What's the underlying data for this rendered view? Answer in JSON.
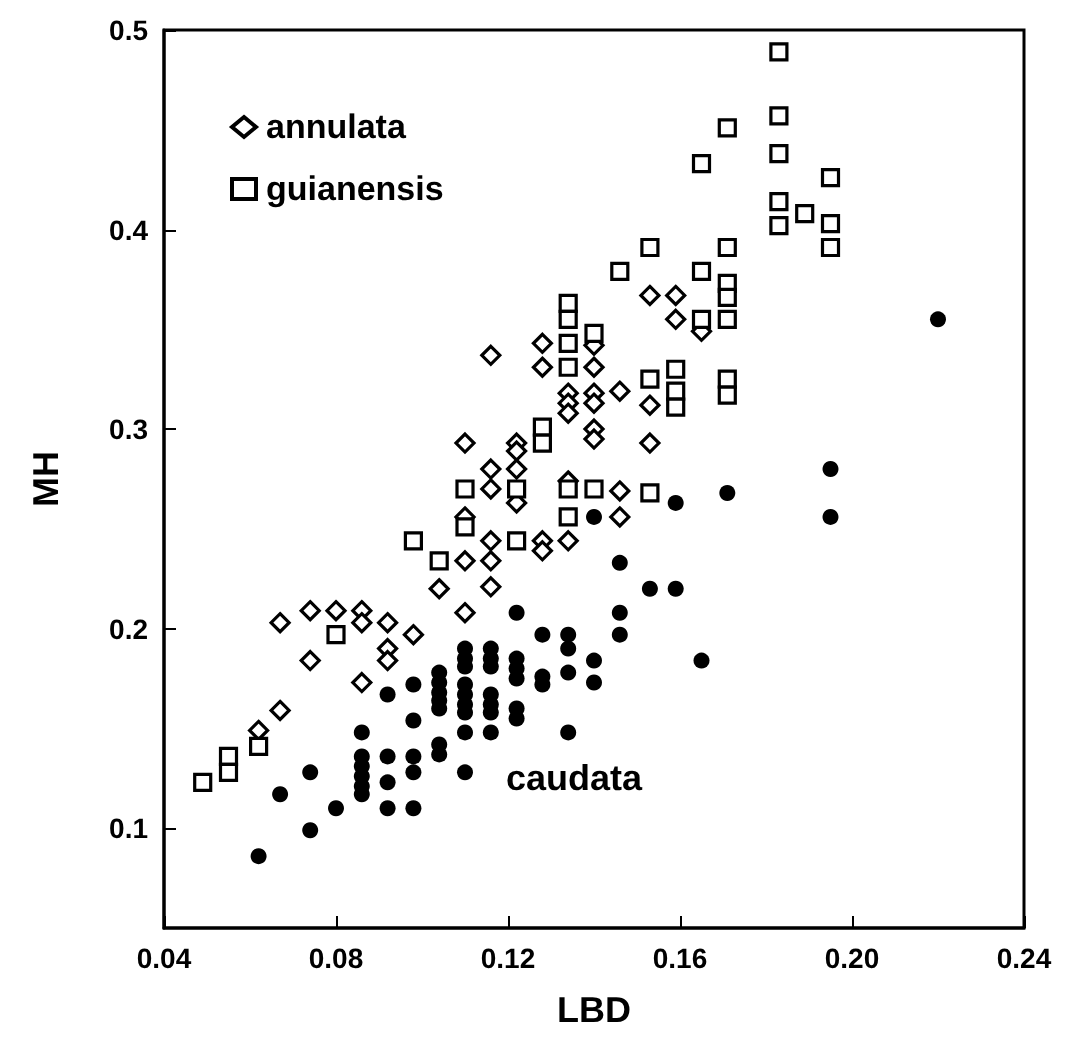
{
  "chart_data": {
    "type": "scatter",
    "xlabel": "LBD",
    "ylabel": "MH",
    "xlim": [
      0.04,
      0.24
    ],
    "xticks": [
      0.04,
      0.08,
      0.12,
      0.16,
      {
        "value": 0.2,
        "label": "0.20"
      },
      0.24
    ],
    "ylim": [
      0.05,
      0.5
    ],
    "yticks": [
      0.1,
      0.2,
      0.3,
      0.4,
      0.5
    ],
    "grid": false,
    "legend": "top left",
    "annotations": [
      "caudata"
    ],
    "series": [
      {
        "name": "annulata",
        "marker": "diamond",
        "color": "#000000",
        "x": [
          0.062,
          0.067,
          0.067,
          0.074,
          0.074,
          0.08,
          0.086,
          0.086,
          0.086,
          0.092,
          0.092,
          0.092,
          0.098,
          0.104,
          0.11,
          0.11,
          0.11,
          0.11,
          0.116,
          0.116,
          0.116,
          0.116,
          0.116,
          0.116,
          0.122,
          0.122,
          0.122,
          0.122,
          0.128,
          0.128,
          0.128,
          0.128,
          0.134,
          0.134,
          0.134,
          0.134,
          0.134,
          0.14,
          0.14,
          0.14,
          0.14,
          0.14,
          0.14,
          0.146,
          0.146,
          0.146,
          0.153,
          0.153,
          0.153,
          0.159,
          0.159,
          0.165
        ],
        "values": [
          0.149,
          0.159,
          0.203,
          0.184,
          0.209,
          0.209,
          0.209,
          0.203,
          0.173,
          0.203,
          0.19,
          0.184,
          0.197,
          0.22,
          0.293,
          0.256,
          0.234,
          0.208,
          0.337,
          0.28,
          0.27,
          0.244,
          0.234,
          0.221,
          0.293,
          0.289,
          0.28,
          0.263,
          0.343,
          0.331,
          0.244,
          0.239,
          0.318,
          0.313,
          0.308,
          0.274,
          0.244,
          0.342,
          0.331,
          0.318,
          0.313,
          0.3,
          0.295,
          0.319,
          0.269,
          0.256,
          0.367,
          0.312,
          0.293,
          0.367,
          0.355,
          0.349
        ]
      },
      {
        "name": "guianensis",
        "marker": "square",
        "color": "#000000",
        "x": [
          0.049,
          0.055,
          0.055,
          0.062,
          0.08,
          0.098,
          0.104,
          0.11,
          0.11,
          0.122,
          0.122,
          0.128,
          0.128,
          0.134,
          0.134,
          0.134,
          0.134,
          0.134,
          0.134,
          0.14,
          0.14,
          0.146,
          0.153,
          0.153,
          0.153,
          0.159,
          0.159,
          0.159,
          0.165,
          0.165,
          0.165,
          0.171,
          0.171,
          0.171,
          0.171,
          0.171,
          0.171,
          0.171,
          0.183,
          0.183,
          0.183,
          0.183,
          0.183,
          0.189,
          0.195,
          0.195,
          0.195
        ],
        "values": [
          0.123,
          0.136,
          0.128,
          0.141,
          0.197,
          0.244,
          0.234,
          0.27,
          0.251,
          0.27,
          0.244,
          0.301,
          0.293,
          0.363,
          0.355,
          0.343,
          0.331,
          0.27,
          0.256,
          0.348,
          0.27,
          0.379,
          0.391,
          0.325,
          0.268,
          0.33,
          0.319,
          0.311,
          0.433,
          0.379,
          0.355,
          0.451,
          0.391,
          0.373,
          0.366,
          0.355,
          0.325,
          0.317,
          0.489,
          0.457,
          0.438,
          0.414,
          0.402,
          0.408,
          0.426,
          0.403,
          0.391
        ]
      },
      {
        "marker": "circle",
        "color": "#000000",
        "x": [
          0.062,
          0.067,
          0.074,
          0.074,
          0.08,
          0.086,
          0.086,
          0.086,
          0.086,
          0.086,
          0.086,
          0.092,
          0.092,
          0.092,
          0.092,
          0.098,
          0.098,
          0.098,
          0.098,
          0.098,
          0.104,
          0.104,
          0.104,
          0.104,
          0.104,
          0.104,
          0.104,
          0.11,
          0.11,
          0.11,
          0.11,
          0.11,
          0.11,
          0.11,
          0.11,
          0.11,
          0.116,
          0.116,
          0.116,
          0.116,
          0.116,
          0.116,
          0.116,
          0.122,
          0.122,
          0.122,
          0.122,
          0.122,
          0.122,
          0.128,
          0.128,
          0.128,
          0.134,
          0.134,
          0.134,
          0.134,
          0.14,
          0.14,
          0.14,
          0.146,
          0.146,
          0.146,
          0.153,
          0.159,
          0.159,
          0.165,
          0.171,
          0.195,
          0.195,
          0.22
        ],
        "values": [
          0.086,
          0.117,
          0.128,
          0.099,
          0.11,
          0.148,
          0.136,
          0.131,
          0.126,
          0.121,
          0.117,
          0.167,
          0.136,
          0.123,
          0.11,
          0.172,
          0.154,
          0.136,
          0.128,
          0.11,
          0.178,
          0.173,
          0.168,
          0.164,
          0.16,
          0.142,
          0.137,
          0.19,
          0.185,
          0.181,
          0.172,
          0.167,
          0.162,
          0.158,
          0.148,
          0.128,
          0.19,
          0.185,
          0.181,
          0.167,
          0.162,
          0.158,
          0.148,
          0.208,
          0.185,
          0.18,
          0.175,
          0.16,
          0.155,
          0.197,
          0.176,
          0.172,
          0.197,
          0.19,
          0.178,
          0.148,
          0.256,
          0.184,
          0.173,
          0.233,
          0.208,
          0.197,
          0.22,
          0.263,
          0.22,
          0.184,
          0.268,
          0.28,
          0.256,
          0.355
        ]
      }
    ]
  }
}
